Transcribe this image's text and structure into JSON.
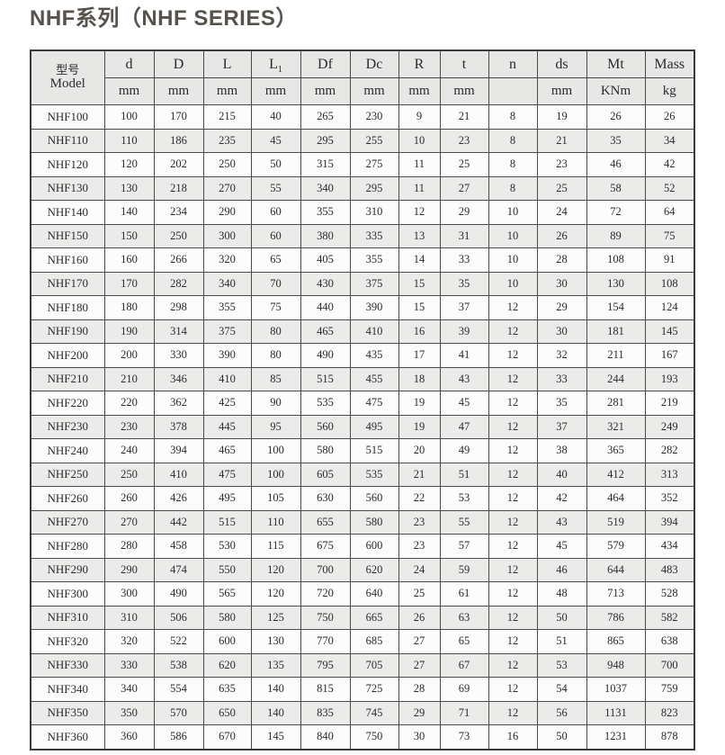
{
  "title": "NHF系列（NHF SERIES）",
  "table": {
    "model_header": {
      "line1": "型号",
      "line2": "Model"
    },
    "columns": [
      {
        "key": "d",
        "label": "d",
        "unit": "mm"
      },
      {
        "key": "D",
        "label": "D",
        "unit": "mm"
      },
      {
        "key": "L",
        "label": "L",
        "unit": "mm"
      },
      {
        "key": "L1",
        "label": "L",
        "sub": "1",
        "unit": "mm"
      },
      {
        "key": "Df",
        "label": "Df",
        "unit": "mm"
      },
      {
        "key": "Dc",
        "label": "Dc",
        "unit": "mm"
      },
      {
        "key": "R",
        "label": "R",
        "unit": "mm"
      },
      {
        "key": "t",
        "label": "t",
        "unit": "mm"
      },
      {
        "key": "n",
        "label": "n",
        "unit": ""
      },
      {
        "key": "ds",
        "label": "ds",
        "unit": "mm"
      },
      {
        "key": "Mt",
        "label": "Mt",
        "unit": "KNm"
      },
      {
        "key": "Mass",
        "label": "Mass",
        "unit": "kg"
      }
    ],
    "rows": [
      {
        "model": "NHF100",
        "values": [
          100,
          170,
          215,
          40,
          265,
          230,
          9,
          21,
          8,
          19,
          26,
          26
        ]
      },
      {
        "model": "NHF110",
        "values": [
          110,
          186,
          235,
          45,
          295,
          255,
          10,
          23,
          8,
          21,
          35,
          34
        ]
      },
      {
        "model": "NHF120",
        "values": [
          120,
          202,
          250,
          50,
          315,
          275,
          11,
          25,
          8,
          23,
          46,
          42
        ]
      },
      {
        "model": "NHF130",
        "values": [
          130,
          218,
          270,
          55,
          340,
          295,
          11,
          27,
          8,
          25,
          58,
          52
        ]
      },
      {
        "model": "NHF140",
        "values": [
          140,
          234,
          290,
          60,
          355,
          310,
          12,
          29,
          10,
          24,
          72,
          64
        ]
      },
      {
        "model": "NHF150",
        "values": [
          150,
          250,
          300,
          60,
          380,
          335,
          13,
          31,
          10,
          26,
          89,
          75
        ]
      },
      {
        "model": "NHF160",
        "values": [
          160,
          266,
          320,
          65,
          405,
          355,
          14,
          33,
          10,
          28,
          108,
          91
        ]
      },
      {
        "model": "NHF170",
        "values": [
          170,
          282,
          340,
          70,
          430,
          375,
          15,
          35,
          10,
          30,
          130,
          108
        ]
      },
      {
        "model": "NHF180",
        "values": [
          180,
          298,
          355,
          75,
          440,
          390,
          15,
          37,
          12,
          29,
          154,
          124
        ]
      },
      {
        "model": "NHF190",
        "values": [
          190,
          314,
          375,
          80,
          465,
          410,
          16,
          39,
          12,
          30,
          181,
          145
        ]
      },
      {
        "model": "NHF200",
        "values": [
          200,
          330,
          390,
          80,
          490,
          435,
          17,
          41,
          12,
          32,
          211,
          167
        ]
      },
      {
        "model": "NHF210",
        "values": [
          210,
          346,
          410,
          85,
          515,
          455,
          18,
          43,
          12,
          33,
          244,
          193
        ]
      },
      {
        "model": "NHF220",
        "values": [
          220,
          362,
          425,
          90,
          535,
          475,
          19,
          45,
          12,
          35,
          281,
          219
        ]
      },
      {
        "model": "NHF230",
        "values": [
          230,
          378,
          445,
          95,
          560,
          495,
          19,
          47,
          12,
          37,
          321,
          249
        ]
      },
      {
        "model": "NHF240",
        "values": [
          240,
          394,
          465,
          100,
          580,
          515,
          20,
          49,
          12,
          38,
          365,
          282
        ]
      },
      {
        "model": "NHF250",
        "values": [
          250,
          410,
          475,
          100,
          605,
          535,
          21,
          51,
          12,
          40,
          412,
          313
        ]
      },
      {
        "model": "NHF260",
        "values": [
          260,
          426,
          495,
          105,
          630,
          560,
          22,
          53,
          12,
          42,
          464,
          352
        ]
      },
      {
        "model": "NHF270",
        "values": [
          270,
          442,
          515,
          110,
          655,
          580,
          23,
          55,
          12,
          43,
          519,
          394
        ]
      },
      {
        "model": "NHF280",
        "values": [
          280,
          458,
          530,
          115,
          675,
          600,
          23,
          57,
          12,
          45,
          579,
          434
        ]
      },
      {
        "model": "NHF290",
        "values": [
          290,
          474,
          550,
          120,
          700,
          620,
          24,
          59,
          12,
          46,
          644,
          483
        ]
      },
      {
        "model": "NHF300",
        "values": [
          300,
          490,
          565,
          120,
          720,
          640,
          25,
          61,
          12,
          48,
          713,
          528
        ]
      },
      {
        "model": "NHF310",
        "values": [
          310,
          506,
          580,
          125,
          750,
          665,
          26,
          63,
          12,
          50,
          786,
          582
        ]
      },
      {
        "model": "NHF320",
        "values": [
          320,
          522,
          600,
          130,
          770,
          685,
          27,
          65,
          12,
          51,
          865,
          638
        ]
      },
      {
        "model": "NHF330",
        "values": [
          330,
          538,
          620,
          135,
          795,
          705,
          27,
          67,
          12,
          53,
          948,
          700
        ]
      },
      {
        "model": "NHF340",
        "values": [
          340,
          554,
          635,
          140,
          815,
          725,
          28,
          69,
          12,
          54,
          1037,
          759
        ]
      },
      {
        "model": "NHF350",
        "values": [
          350,
          570,
          650,
          140,
          835,
          745,
          29,
          71,
          12,
          56,
          1131,
          823
        ]
      },
      {
        "model": "NHF360",
        "values": [
          360,
          586,
          670,
          145,
          840,
          750,
          30,
          73,
          16,
          50,
          1231,
          878
        ]
      }
    ]
  }
}
